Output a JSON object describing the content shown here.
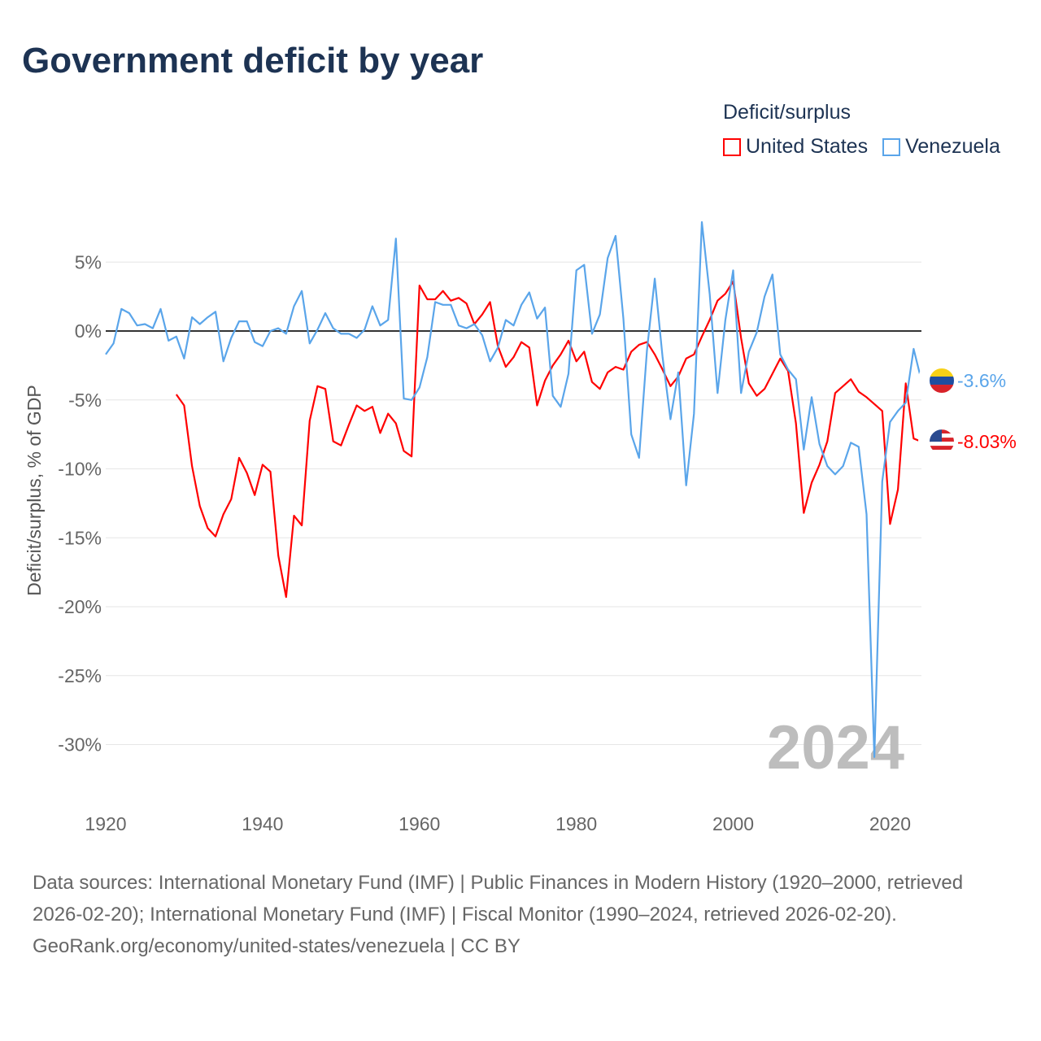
{
  "title": "Government deficit by year",
  "legend": {
    "title": "Deficit/surplus",
    "items": [
      {
        "name": "United States",
        "color": "#ff0000"
      },
      {
        "name": "Venezuela",
        "color": "#5aa5ea"
      }
    ]
  },
  "chart_data": {
    "type": "line",
    "title": "Government deficit by year",
    "xlabel": "",
    "ylabel": "Deficit/surplus, % of GDP",
    "xlim": [
      1920,
      2024
    ],
    "ylim": [
      -32,
      8.5
    ],
    "xticks": [
      1920,
      1940,
      1960,
      1980,
      2000,
      2020
    ],
    "yticks": [
      5,
      0,
      -5,
      -10,
      -15,
      -20,
      -25,
      -30
    ],
    "ytick_labels": [
      "5%",
      "0%",
      "-5%",
      "-10%",
      "-15%",
      "-20%",
      "-25%",
      "-30%"
    ],
    "grid": true,
    "legend_position": "top-right",
    "year_watermark": "2024",
    "series": [
      {
        "name": "United States",
        "color": "#ff0000",
        "start_year": 1929,
        "end_label": "-8.03%",
        "values": [
          -4.6,
          -5.4,
          -9.8,
          -12.7,
          -14.3,
          -14.9,
          -13.3,
          -12.2,
          -9.2,
          -10.3,
          -11.9,
          -9.7,
          -10.2,
          -16.3,
          -19.3,
          -13.4,
          -14.1,
          -6.5,
          -4.0,
          -4.2,
          -8.0,
          -8.3,
          -6.8,
          -5.4,
          -5.8,
          -5.5,
          -7.4,
          -6.0,
          -6.7,
          -8.7,
          -9.1,
          3.3,
          2.3,
          2.3,
          2.9,
          2.2,
          2.4,
          2.0,
          0.5,
          1.2,
          2.1,
          -1.1,
          -2.6,
          -1.9,
          -0.8,
          -1.2,
          -5.4,
          -3.6,
          -2.5,
          -1.7,
          -0.7,
          -2.2,
          -1.5,
          -3.7,
          -4.2,
          -3.0,
          -2.6,
          -2.8,
          -1.5,
          -1.0,
          -0.8,
          -1.7,
          -2.8,
          -4.0,
          -3.3,
          -2.0,
          -1.7,
          -0.4,
          0.8,
          2.2,
          2.7,
          3.6,
          -0.5,
          -3.8,
          -4.7,
          -4.2,
          -3.1,
          -2.0,
          -2.9,
          -6.7,
          -13.2,
          -11.0,
          -9.7,
          -8.0,
          -4.5,
          -4.0,
          -3.5,
          -4.4,
          -4.8,
          -5.3,
          -5.8,
          -14.0,
          -11.5,
          -3.8,
          -7.8,
          -8.03
        ]
      },
      {
        "name": "Venezuela",
        "color": "#5aa5ea",
        "start_year": 1920,
        "end_label": "-3.6%",
        "values": [
          -1.7,
          -0.9,
          1.6,
          1.3,
          0.4,
          0.5,
          0.2,
          1.6,
          -0.7,
          -0.4,
          -2.0,
          1.0,
          0.5,
          1.0,
          1.4,
          -2.2,
          -0.5,
          0.7,
          0.7,
          -0.8,
          -1.1,
          0.0,
          0.2,
          -0.2,
          1.8,
          2.9,
          -0.9,
          0.1,
          1.3,
          0.2,
          -0.2,
          -0.2,
          -0.5,
          0.1,
          1.8,
          0.4,
          0.8,
          6.7,
          -4.9,
          -5.0,
          -4.1,
          -1.9,
          2.1,
          1.9,
          1.9,
          0.4,
          0.2,
          0.5,
          -0.3,
          -2.2,
          -1.2,
          0.8,
          0.4,
          1.9,
          2.8,
          0.9,
          1.7,
          -4.7,
          -5.5,
          -3.1,
          4.4,
          4.8,
          -0.2,
          1.2,
          5.3,
          6.9,
          0.9,
          -7.5,
          -9.2,
          -1.4,
          3.8,
          -1.9,
          -6.4,
          -3.0,
          -11.2,
          -6.0,
          7.9,
          2.7,
          -4.5,
          0.8,
          4.4,
          -4.5,
          -1.5,
          -0.1,
          2.5,
          4.1,
          -1.7,
          -2.8,
          -3.5,
          -8.6,
          -4.8,
          -8.2,
          -9.8,
          -10.4,
          -9.8,
          -8.1,
          -8.4,
          -13.3,
          -30.9,
          -10.9,
          -6.6,
          -5.8,
          -5.2,
          -1.3,
          -3.6
        ]
      }
    ]
  },
  "footer": {
    "sources": "Data sources: International Monetary Fund (IMF) | Public Finances in Modern History (1920–2000, retrieved 2026-02-20); International Monetary Fund (IMF) | Fiscal Monitor (1990–2024, retrieved 2026-02-20).",
    "credit": "GeoRank.org/economy/united-states/venezuela | CC BY"
  }
}
